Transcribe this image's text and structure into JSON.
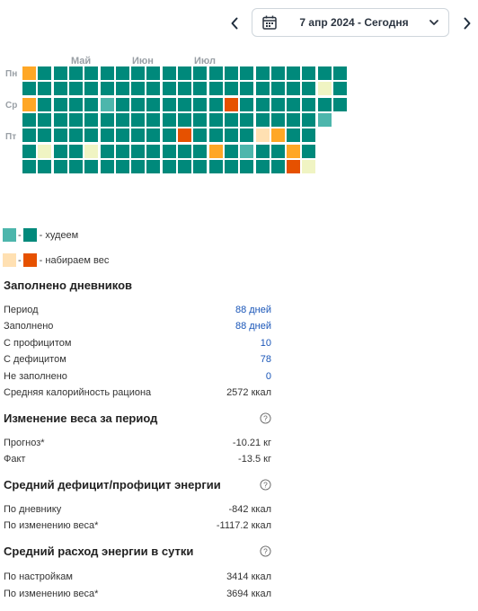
{
  "date_picker": {
    "text": "7 апр 2024 - Сегодня",
    "icon": "calendar-icon"
  },
  "heatmap": {
    "months": [
      "Май",
      "Июн",
      "Июл"
    ],
    "day_labels": [
      "Пн",
      "Ср",
      "Пт"
    ],
    "colors": {
      "L": "#4db6ac",
      "D": "#00897b",
      "P": "#ffe0b2",
      "Y": "#f0f4c3",
      "O": "#ffa726",
      "R": "#e65100"
    },
    "rows": [
      "ODDDDDDDDDDDDDDDDDDDD",
      "DDDDDDDDDDDDDDDDDDDYD",
      "ODDDDLDDDDDDDRDDDDDDD",
      "DDDDDDDDDDDDDDDDDDDL",
      "DDDDDDDDDDRDDDDPODD",
      "DYDDYDDDDDDDODLDDOD",
      "DDDDDDDDDDDDDDDDDRY"
    ]
  },
  "legend": {
    "loss": {
      "colors": [
        "#4db6ac",
        "#00897b"
      ],
      "label": "- худеем"
    },
    "gain": {
      "colors": [
        "#ffe0b2",
        "#e65100"
      ],
      "label": "- набираем вес"
    }
  },
  "diaries": {
    "title": "Заполнено дневников",
    "rows": [
      {
        "label": "Период",
        "value": "88 дней",
        "link": true
      },
      {
        "label": "Заполнено",
        "value": "88 дней",
        "link": true
      },
      {
        "label": "С профицитом",
        "value": "10",
        "link": true
      },
      {
        "label": "С дефицитом",
        "value": "78",
        "link": true
      },
      {
        "label": "Не заполнено",
        "value": "0",
        "link": true
      },
      {
        "label": "Средняя калорийность рациона",
        "value": "2572 ккал",
        "link": false
      }
    ]
  },
  "weight_change": {
    "title": "Изменение веса за период",
    "rows": [
      {
        "label": "Прогноз*",
        "value": "-10.21 кг"
      },
      {
        "label": "Факт",
        "value": "-13.5 кг"
      }
    ]
  },
  "energy_balance": {
    "title": "Средний дефицит/профицит энергии",
    "rows": [
      {
        "label": "По дневнику",
        "value": "-842 ккал"
      },
      {
        "label": "По изменению веса*",
        "value": "-1117.2 ккал"
      }
    ]
  },
  "energy_expense": {
    "title": "Средний расход энергии в сутки",
    "rows": [
      {
        "label": "По настройкам",
        "value": "3414 ккал"
      },
      {
        "label": "По изменению веса*",
        "value": "3694 ккал"
      }
    ]
  }
}
